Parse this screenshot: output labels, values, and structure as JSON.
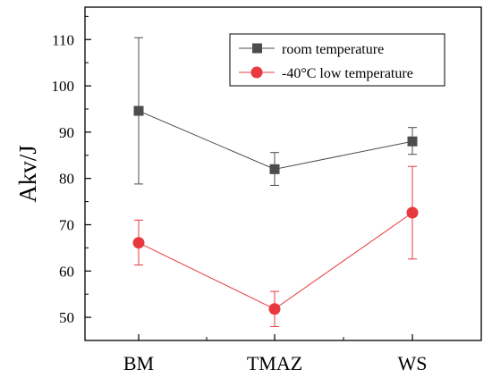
{
  "chart_data": {
    "type": "line",
    "title": "",
    "xlabel": "",
    "ylabel": "Akv/J",
    "categories": [
      "BM",
      "TMAZ",
      "WS"
    ],
    "ylim": [
      45,
      117
    ],
    "yticks": [
      50,
      60,
      70,
      80,
      90,
      100,
      110
    ],
    "grid": false,
    "legend_position": "top-right",
    "series": [
      {
        "name": "room temperature",
        "color": "#4d4d4d",
        "marker": "square",
        "values": [
          94.6,
          82.0,
          88.0
        ],
        "error_low": [
          78.8,
          78.5,
          85.2
        ],
        "error_high": [
          110.4,
          85.6,
          91.0
        ]
      },
      {
        "name": "-40°C low temperature",
        "color": "#e8393f",
        "marker": "circle",
        "values": [
          66.1,
          51.8,
          72.6
        ],
        "error_low": [
          61.3,
          48.0,
          62.6
        ],
        "error_high": [
          71.0,
          55.6,
          82.6
        ]
      }
    ]
  }
}
